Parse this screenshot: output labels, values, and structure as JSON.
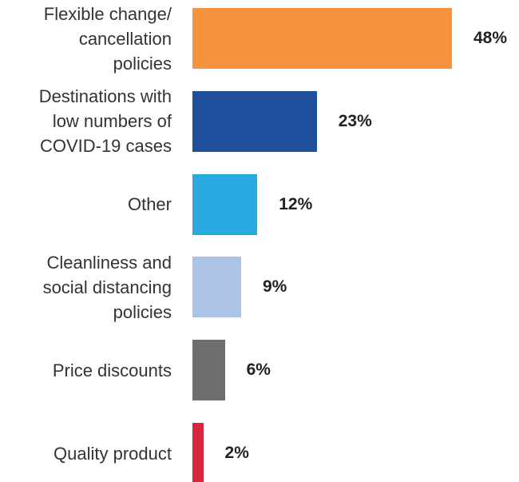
{
  "chart_data": {
    "type": "bar",
    "orientation": "horizontal",
    "categories": [
      "Flexible change/\ncancellation\npolicies",
      "Destinations with\nlow numbers of\nCOVID-19 cases",
      "Other",
      "Cleanliness and\nsocial distancing\npolicies",
      "Price discounts",
      "Quality product"
    ],
    "values": [
      48,
      23,
      12,
      9,
      6,
      2
    ],
    "value_labels": [
      "48%",
      "23%",
      "12%",
      "9%",
      "6%",
      "2%"
    ],
    "colors": [
      "#f6923e",
      "#1f4e9c",
      "#29abe2",
      "#adc3e5",
      "#6d6e70",
      "#d7263d"
    ]
  }
}
